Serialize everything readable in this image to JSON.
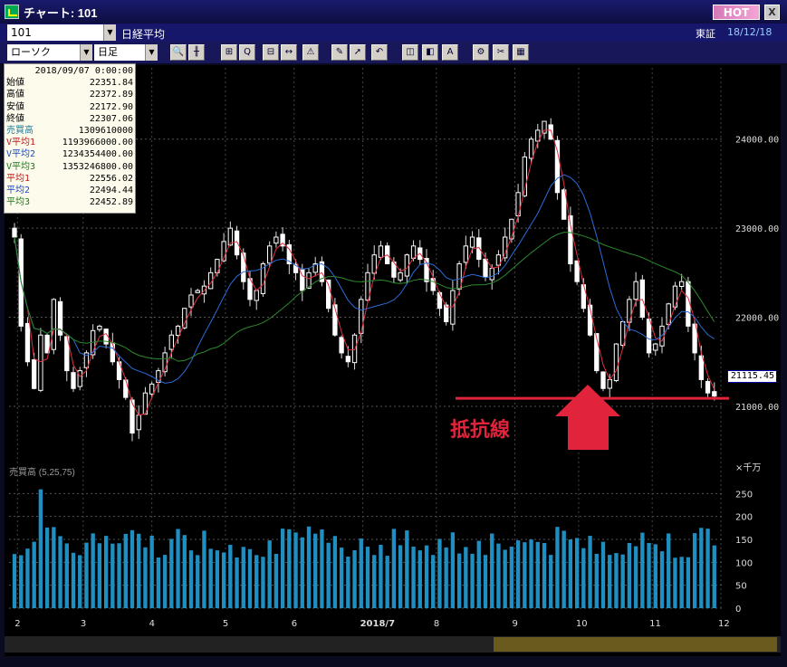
{
  "window": {
    "title": "チャート: 101",
    "hot_label": "HOT",
    "close_label": "X"
  },
  "symbol": {
    "code": "101",
    "name": "日経平均",
    "market": "東証",
    "date": "18/12/18"
  },
  "toolbar": {
    "chart_type": "ローソク",
    "period": "日足"
  },
  "info": {
    "datetime": "2018/09/07 0:00:00",
    "rows": [
      {
        "label": "始値",
        "value": "22351.84",
        "color": "#000000"
      },
      {
        "label": "高値",
        "value": "22372.89",
        "color": "#000000"
      },
      {
        "label": "安値",
        "value": "22172.90",
        "color": "#000000"
      },
      {
        "label": "終値",
        "value": "22307.06",
        "color": "#000000"
      },
      {
        "label": "売買高",
        "value": "1309610000",
        "color": "#1f7a9c"
      },
      {
        "label": "V平均1",
        "value": "1193966000.00",
        "color": "#c01a1a"
      },
      {
        "label": "V平均2",
        "value": "1234354400.00",
        "color": "#1a4ac0"
      },
      {
        "label": "V平均3",
        "value": "1353246800.00",
        "color": "#1a7a1a"
      },
      {
        "label": "平均1",
        "value": "22556.02",
        "color": "#c01a1a"
      },
      {
        "label": "平均2",
        "value": "22494.44",
        "color": "#1a4ac0"
      },
      {
        "label": "平均3",
        "value": "22452.89",
        "color": "#1a7a1a"
      }
    ]
  },
  "volume_label": "売買高 (5,25,75)",
  "price_tag": "21115.45",
  "annotation": "抵抗線",
  "chart_data": {
    "type": "candlestick",
    "price_axis": {
      "ticks": [
        "24000.00",
        "23000.00",
        "22000.00",
        "21000.00"
      ],
      "ylim": [
        20400,
        24800
      ]
    },
    "volume_axis": {
      "unit": "×千万",
      "ticks": [
        "250",
        "200",
        "150",
        "100",
        "50",
        "0"
      ],
      "ylim": [
        0,
        300
      ]
    },
    "x_ticks": [
      "2",
      "3",
      "4",
      "5",
      "6",
      "2018/7",
      "8",
      "9",
      "10",
      "11",
      "12"
    ],
    "resistance_level": 21090,
    "last_close": 21115.45,
    "ma_colors": {
      "ma1": "#e03040",
      "ma2": "#2b6cd8",
      "ma3": "#2c8a2c"
    },
    "closes": [
      22900,
      21900,
      21500,
      21200,
      21800,
      21600,
      22200,
      21800,
      21400,
      21200,
      21400,
      21600,
      21850,
      21900,
      21700,
      21500,
      21300,
      21100,
      20700,
      20900,
      21150,
      21250,
      21400,
      21600,
      21800,
      21900,
      22100,
      22250,
      22300,
      22350,
      22500,
      22650,
      22850,
      23000,
      22700,
      22400,
      22200,
      22300,
      22600,
      22800,
      22900,
      22800,
      22600,
      22500,
      22300,
      22500,
      22600,
      22400,
      22100,
      21800,
      21600,
      21500,
      21800,
      22200,
      22500,
      22700,
      22800,
      22600,
      22450,
      22500,
      22700,
      22800,
      22650,
      22400,
      22300,
      22100,
      21950,
      22300,
      22600,
      22800,
      22900,
      22650,
      22450,
      22550,
      22700,
      22900,
      23100,
      23400,
      23800,
      24000,
      24100,
      24200,
      24000,
      23400,
      23100,
      22600,
      22400,
      22100,
      21800,
      21400,
      21200,
      21300,
      21700,
      21950,
      22200,
      22400,
      22000,
      21600,
      21700,
      21900,
      22150,
      22350,
      22400,
      21900,
      21600,
      21300,
      21150,
      21115
    ]
  }
}
